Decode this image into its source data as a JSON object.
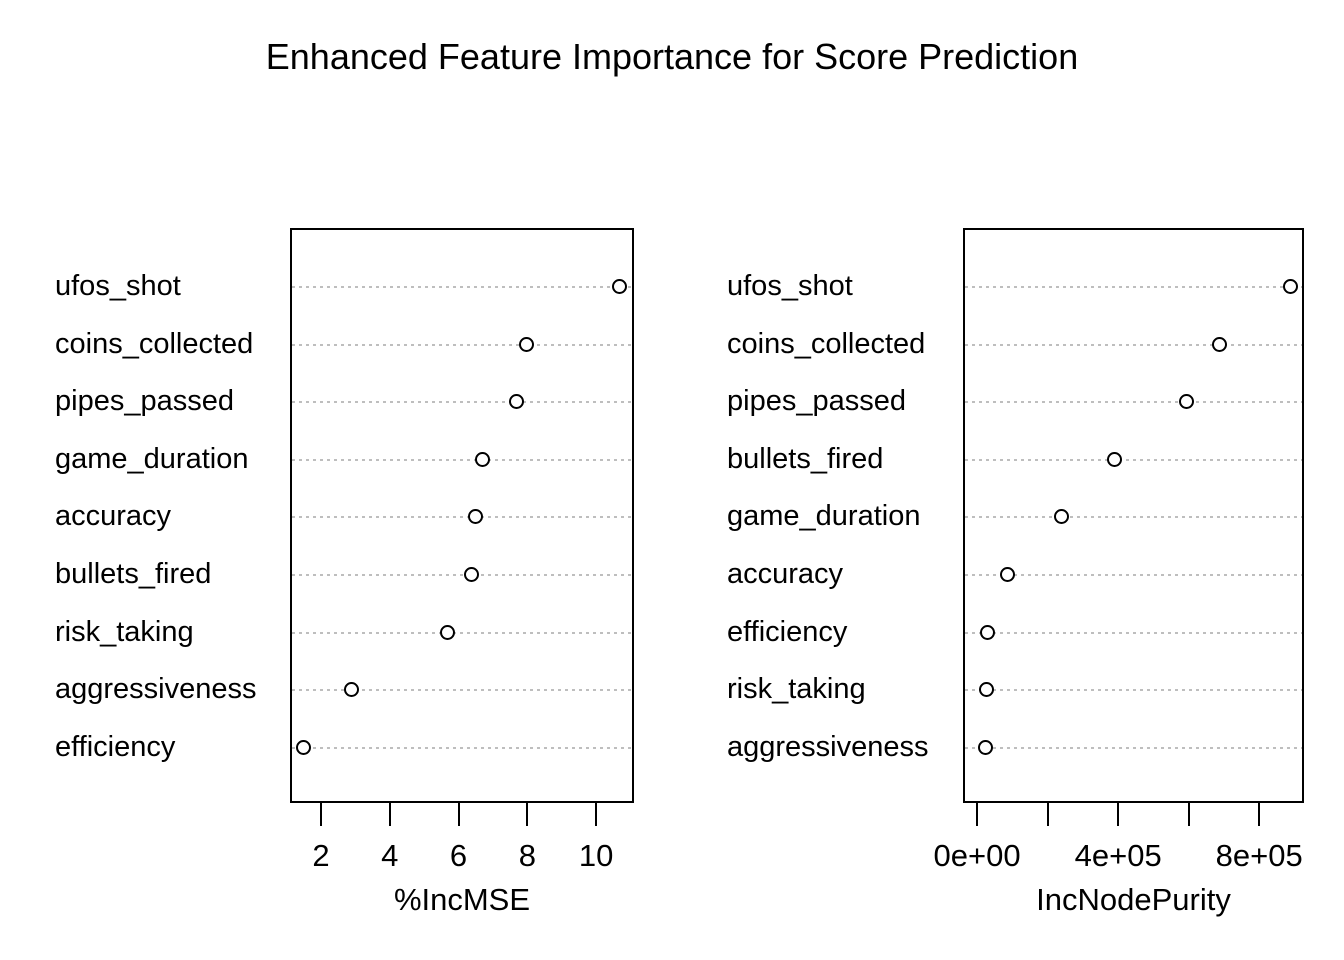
{
  "title": "Enhanced Feature Importance for Score Prediction",
  "chart_data": [
    {
      "type": "scatter",
      "panel": "left",
      "xlabel": "%IncMSE",
      "categories": [
        "ufos_shot",
        "coins_collected",
        "pipes_passed",
        "game_duration",
        "accuracy",
        "bullets_fired",
        "risk_taking",
        "aggressiveness",
        "efficiency"
      ],
      "values": [
        10.7,
        8.0,
        7.7,
        6.7,
        6.5,
        6.4,
        5.7,
        2.9,
        1.5
      ],
      "xlim": [
        1.1,
        11.1
      ],
      "xticks": [
        2,
        4,
        6,
        8,
        10
      ],
      "xtick_labels": [
        "2",
        "4",
        "6",
        "8",
        "10"
      ],
      "grid": "horizontal-dotted",
      "legend": "none",
      "marker": "open-circle"
    },
    {
      "type": "scatter",
      "panel": "right",
      "xlabel": "IncNodePurity",
      "categories": [
        "ufos_shot",
        "coins_collected",
        "pipes_passed",
        "bullets_fired",
        "game_duration",
        "accuracy",
        "efficiency",
        "risk_taking",
        "aggressiveness"
      ],
      "values": [
        890000,
        690000,
        595000,
        390000,
        240000,
        87000,
        31000,
        28000,
        25000
      ],
      "xlim": [
        -40000,
        927000
      ],
      "xticks": [
        0,
        200000,
        400000,
        600000,
        800000
      ],
      "xtick_labels": [
        "0e+00",
        "",
        "4e+05",
        "",
        "8e+05"
      ],
      "grid": "horizontal-dotted",
      "legend": "none",
      "marker": "open-circle"
    }
  ],
  "colors": {
    "background": "#ffffff",
    "text": "#000000",
    "box_border": "#000000",
    "grid_line": "#bebebe",
    "point_stroke": "#000000",
    "point_fill": "#ffffff"
  }
}
